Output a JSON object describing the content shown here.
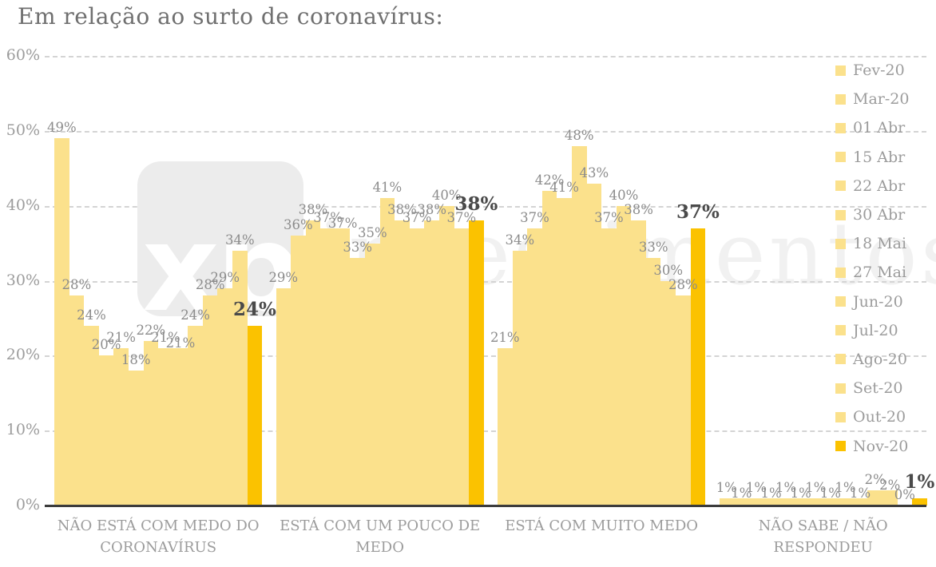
{
  "title": "Em relação ao surto de coronavírus:",
  "y_axis": {
    "tick_labels": [
      "60%",
      "50%",
      "40%",
      "30%",
      "20%",
      "10%",
      "0%"
    ]
  },
  "watermark": {
    "logo": "xp",
    "wordmark": "investimentos"
  },
  "colors": {
    "bar": "#fbe18c",
    "bar_highlight": "#fbc200",
    "value_label": "#8c8c8c",
    "value_label_highlight": "#4a4a4a",
    "axis_text": "#9c9c9c",
    "gridline": "#d4d4d4",
    "baseline": "#3c3c3c",
    "title_text": "#6f6f6f",
    "watermark_bg": "#ececec"
  },
  "chart_data": {
    "type": "bar",
    "title": "Em relação ao surto de coronavírus:",
    "categories": [
      "NÃO ESTÁ COM MEDO DO CORONAVÍRUS",
      "ESTÁ COM UM POUCO DE MEDO",
      "ESTÁ COM MUITO MEDO",
      "NÃO SABE / NÃO RESPONDEU"
    ],
    "category_label_lines": [
      "NÃO ESTÁ COM MEDO DO\nCORONAVÍRUS",
      "ESTÁ COM UM POUCO DE\nMEDO",
      "ESTÁ COM MUITO MEDO",
      "NÃO SABE / NÃO\nRESPONDEU"
    ],
    "series": [
      {
        "name": "Fev-20",
        "values": [
          49,
          29,
          21,
          1
        ]
      },
      {
        "name": "Mar-20",
        "values": [
          28,
          36,
          34,
          1
        ]
      },
      {
        "name": "01 Abr",
        "values": [
          24,
          38,
          37,
          1
        ]
      },
      {
        "name": "15 Abr",
        "values": [
          20,
          37,
          42,
          1
        ]
      },
      {
        "name": "22 Abr",
        "values": [
          21,
          37,
          41,
          1
        ]
      },
      {
        "name": "30 Abr",
        "values": [
          18,
          33,
          48,
          1
        ]
      },
      {
        "name": "18 Mai",
        "values": [
          22,
          35,
          43,
          1
        ]
      },
      {
        "name": "27 Mai",
        "values": [
          21,
          41,
          37,
          1
        ]
      },
      {
        "name": "Jun-20",
        "values": [
          21,
          38,
          40,
          1
        ]
      },
      {
        "name": "Jul-20",
        "values": [
          24,
          37,
          38,
          1
        ]
      },
      {
        "name": "Ago-20",
        "values": [
          28,
          38,
          33,
          2
        ]
      },
      {
        "name": "Set-20",
        "values": [
          29,
          40,
          30,
          2
        ]
      },
      {
        "name": "Out-20",
        "values": [
          34,
          37,
          28,
          0
        ]
      },
      {
        "name": "Nov-20",
        "values": [
          24,
          38,
          37,
          1
        ]
      }
    ],
    "highlight_series": "Nov-20",
    "ylim": [
      0,
      60
    ],
    "y_step": 10,
    "grid": "horizontal-dashed",
    "legend_position": "right",
    "value_labels": "percent-above-bars"
  }
}
